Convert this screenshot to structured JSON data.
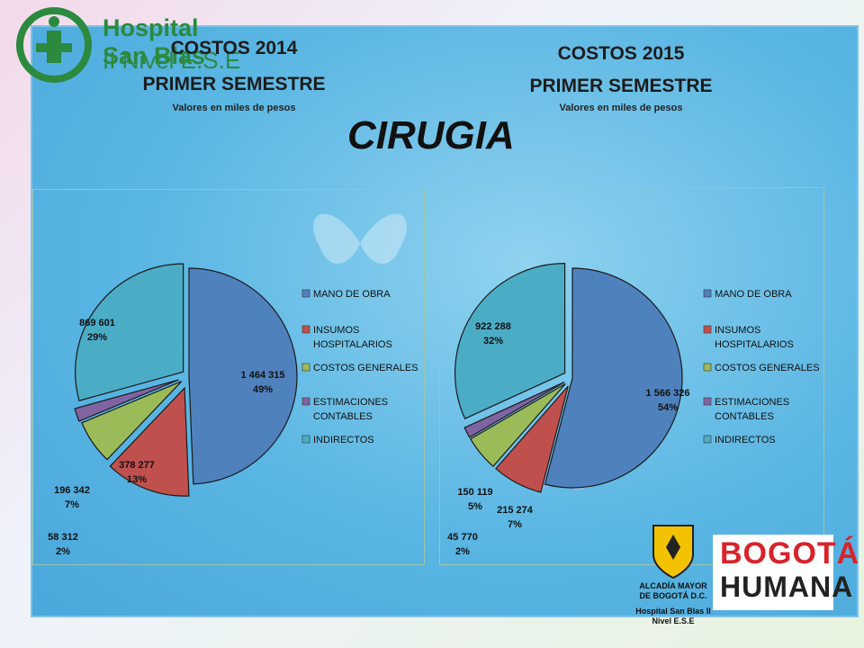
{
  "logo": {
    "line1": "Hospital San Blas",
    "line2": "II Nivel E.S.E"
  },
  "main_title": "CIRUGIA",
  "chart_data": [
    {
      "type": "pie",
      "title": "COSTOS  2014",
      "subtitle": "PRIMER SEMESTRE",
      "note": "Valores en miles de pesos",
      "legend_position": "right",
      "categories": [
        "MANO DE OBRA",
        "INSUMOS HOSPITALARIOS",
        "COSTOS GENERALES",
        "ESTIMACIONES CONTABLES",
        "INDIRECTOS"
      ],
      "values": [
        1464315,
        378277,
        196342,
        58312,
        869601
      ],
      "value_labels": [
        "1 464 315",
        "378 277",
        "196 342",
        "58 312",
        "869 601"
      ],
      "percent_labels": [
        "49%",
        "13%",
        "7%",
        "2%",
        "29%"
      ]
    },
    {
      "type": "pie",
      "title": "COSTOS  2015",
      "subtitle": "PRIMER SEMESTRE",
      "note": "Valores en miles de pesos",
      "legend_position": "right",
      "categories": [
        "MANO DE OBRA",
        "INSUMOS HOSPITALARIOS",
        "COSTOS GENERALES",
        "ESTIMACIONES CONTABLES",
        "INDIRECTOS"
      ],
      "values": [
        1566326,
        215274,
        150119,
        45770,
        922288
      ],
      "value_labels": [
        "1 566 326",
        "215 274",
        "150 119",
        "45 770",
        "922 288"
      ],
      "percent_labels": [
        "54%",
        "7%",
        "5%",
        "2%",
        "32%"
      ]
    }
  ],
  "colors": [
    "#4f81bd",
    "#c0504d",
    "#9bbb59",
    "#8064a2",
    "#4bacc6"
  ],
  "footer": {
    "alcaldia": [
      "ALCADÍA MAYOR",
      "DE BOGOTÁ D.C."
    ],
    "hospital": [
      "Hospital San Blas II",
      "Nivel E.S.E"
    ],
    "bogota": [
      "BOGOTÁ",
      "HUMANA"
    ]
  }
}
